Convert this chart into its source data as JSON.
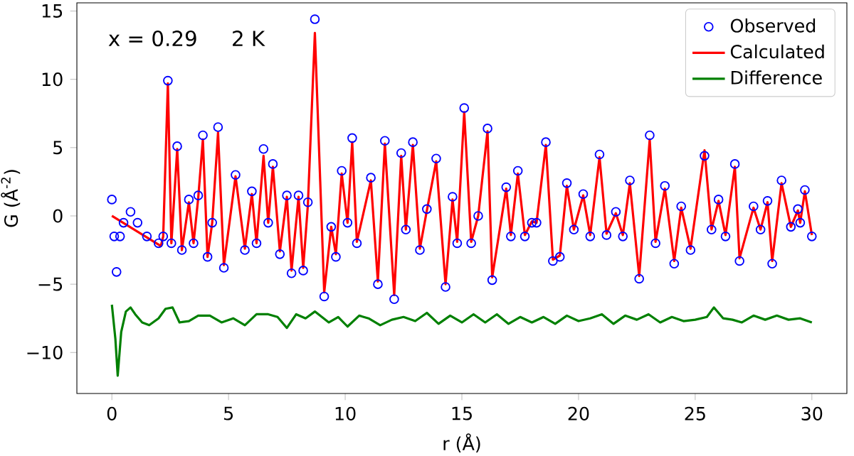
{
  "chart_data": {
    "type": "line",
    "xlabel": "r (Å)",
    "ylabel": "G (Å$^{-2}$)",
    "annotations": [
      "x = 0.29",
      "2 K"
    ],
    "xlim": [
      -1.5,
      31.5
    ],
    "ylim": [
      -13,
      15.6
    ],
    "xticks": [
      0,
      5,
      10,
      15,
      20,
      25,
      30
    ],
    "yticks": [
      {
        "value": -10,
        "label": "−10"
      },
      {
        "value": -5,
        "label": "−5"
      },
      0,
      5,
      10,
      15
    ],
    "legend": "top right",
    "grid": false,
    "series": [
      {
        "name": "Observed",
        "type": "scatter",
        "marker": "circle",
        "color": "#0000ff",
        "x": [
          0,
          0.1,
          0.2,
          0.35,
          0.5,
          0.8,
          1.1,
          1.5,
          2.0,
          2.2,
          2.4,
          2.55,
          2.8,
          3.0,
          3.3,
          3.5,
          3.7,
          3.9,
          4.1,
          4.3,
          4.55,
          4.8,
          5.3,
          5.7,
          6.0,
          6.2,
          6.5,
          6.7,
          6.9,
          7.2,
          7.5,
          7.7,
          8.0,
          8.2,
          8.4,
          8.7,
          9.1,
          9.4,
          9.6,
          9.85,
          10.1,
          10.3,
          10.5,
          11.1,
          11.4,
          11.7,
          12.1,
          12.4,
          12.6,
          12.9,
          13.2,
          13.5,
          13.9,
          14.3,
          14.6,
          14.8,
          15.1,
          15.4,
          15.7,
          16.1,
          16.3,
          16.9,
          17.1,
          17.4,
          17.7,
          18.0,
          18.2,
          18.6,
          18.9,
          19.2,
          19.5,
          19.8,
          20.2,
          20.5,
          20.9,
          21.2,
          21.6,
          21.9,
          22.2,
          22.6,
          23.05,
          23.3,
          23.7,
          24.1,
          24.4,
          24.8,
          25.4,
          25.7,
          26.0,
          26.3,
          26.7,
          26.9,
          27.5,
          27.8,
          28.1,
          28.3,
          28.7,
          29.1,
          29.4,
          29.5,
          29.7,
          30.0
        ],
        "values": [
          1.2,
          -1.5,
          -4.1,
          -1.5,
          -0.5,
          0.3,
          -0.5,
          -1.5,
          -2.0,
          -1.5,
          9.9,
          -2.0,
          5.1,
          -2.5,
          1.2,
          -2.0,
          1.5,
          5.9,
          -3.0,
          -0.5,
          6.5,
          -3.8,
          3.0,
          -2.5,
          1.8,
          -2.0,
          4.9,
          -0.5,
          3.8,
          -2.8,
          1.5,
          -4.2,
          1.5,
          -4.0,
          1.0,
          14.4,
          -5.9,
          -0.8,
          -3.0,
          3.3,
          -0.5,
          5.7,
          -2.0,
          2.8,
          -5.0,
          5.5,
          -6.1,
          4.6,
          -1.0,
          5.4,
          -2.5,
          0.5,
          4.2,
          -5.2,
          1.4,
          -2.0,
          7.9,
          -2.0,
          0.0,
          6.4,
          -4.7,
          2.1,
          -1.5,
          3.3,
          -1.5,
          -0.5,
          -0.5,
          5.4,
          -3.3,
          -3.0,
          2.4,
          -1.0,
          1.6,
          -1.5,
          4.5,
          -1.4,
          0.3,
          -1.5,
          2.6,
          -4.6,
          5.9,
          -2.0,
          2.2,
          -3.5,
          0.7,
          -2.5,
          4.4,
          -1.0,
          1.2,
          -1.5,
          3.8,
          -3.3,
          0.7,
          -1.0,
          1.1,
          -3.5,
          2.6,
          -0.8,
          0.5,
          -0.5,
          1.9,
          -1.5
        ]
      },
      {
        "name": "Calculated",
        "color": "#ff0000",
        "x": [
          0,
          2.1,
          2.2,
          2.4,
          2.55,
          2.8,
          3.0,
          3.3,
          3.5,
          3.7,
          3.9,
          4.1,
          4.3,
          4.55,
          4.8,
          5.3,
          5.7,
          6.0,
          6.2,
          6.5,
          6.7,
          6.9,
          7.2,
          7.5,
          7.7,
          8.0,
          8.2,
          8.4,
          8.7,
          9.1,
          9.4,
          9.6,
          9.85,
          10.1,
          10.3,
          10.5,
          11.1,
          11.4,
          11.7,
          12.1,
          12.4,
          12.6,
          12.9,
          13.2,
          13.5,
          13.9,
          14.3,
          14.6,
          14.8,
          15.1,
          15.4,
          15.7,
          16.1,
          16.3,
          16.9,
          17.1,
          17.4,
          17.7,
          18.0,
          18.2,
          18.6,
          18.9,
          19.2,
          19.5,
          19.8,
          20.2,
          20.5,
          20.9,
          21.2,
          21.6,
          21.9,
          22.2,
          22.6,
          23.05,
          23.3,
          23.7,
          24.1,
          24.4,
          24.8,
          25.4,
          25.7,
          26.0,
          26.3,
          26.7,
          26.9,
          27.5,
          27.8,
          28.1,
          28.3,
          28.7,
          29.1,
          29.4,
          29.5,
          29.7,
          30.0
        ],
        "values": [
          0,
          -2.2,
          -1.5,
          9.7,
          -2.0,
          4.9,
          -2.5,
          1.0,
          -2.0,
          1.3,
          5.6,
          -3.0,
          -0.5,
          6.1,
          -3.6,
          2.9,
          -2.4,
          1.6,
          -2.0,
          4.4,
          -0.5,
          3.6,
          -2.6,
          1.4,
          -4.0,
          1.4,
          -3.8,
          0.8,
          13.4,
          -5.6,
          -0.8,
          -2.8,
          3.1,
          -0.5,
          5.4,
          -1.9,
          2.6,
          -4.8,
          5.3,
          -5.8,
          4.4,
          -1.0,
          5.2,
          -2.4,
          0.4,
          4.0,
          -5.0,
          1.2,
          -1.9,
          7.6,
          -1.9,
          0.0,
          6.2,
          -4.5,
          2.0,
          -1.4,
          3.1,
          -1.4,
          -0.4,
          -0.5,
          5.2,
          -3.2,
          -2.9,
          2.2,
          -1.0,
          1.5,
          -1.4,
          4.3,
          -1.3,
          0.2,
          -1.4,
          2.4,
          -4.4,
          5.6,
          -1.9,
          2.0,
          -3.3,
          0.6,
          -2.4,
          4.8,
          -1.0,
          1.1,
          -1.4,
          3.6,
          -3.1,
          0.6,
          -1.0,
          1.0,
          -3.3,
          2.4,
          -0.8,
          0.4,
          -0.5,
          1.8,
          -1.4
        ]
      },
      {
        "name": "Difference",
        "color": "#008000",
        "x": [
          0,
          0.15,
          0.25,
          0.4,
          0.6,
          0.8,
          1.0,
          1.3,
          1.6,
          2.0,
          2.3,
          2.6,
          2.9,
          3.3,
          3.7,
          4.2,
          4.7,
          5.2,
          5.7,
          6.2,
          6.7,
          7.1,
          7.5,
          7.9,
          8.3,
          8.7,
          9.3,
          9.7,
          10.1,
          10.6,
          11.0,
          11.5,
          12.0,
          12.5,
          13.0,
          13.5,
          14.0,
          14.5,
          15.0,
          15.5,
          16.0,
          16.5,
          17.0,
          17.5,
          18.0,
          18.5,
          19.0,
          19.5,
          20.0,
          20.5,
          21.0,
          21.5,
          22.0,
          22.5,
          23.0,
          23.5,
          24.0,
          24.5,
          25.0,
          25.5,
          25.8,
          26.2,
          26.6,
          27.0,
          27.5,
          28.0,
          28.5,
          29.0,
          29.5,
          30.0
        ],
        "values": [
          -6.5,
          -9,
          -11.7,
          -8.5,
          -7,
          -6.7,
          -7.2,
          -7.8,
          -8.0,
          -7.5,
          -6.8,
          -6.7,
          -7.8,
          -7.7,
          -7.3,
          -7.3,
          -7.8,
          -7.5,
          -8.0,
          -7.2,
          -7.2,
          -7.4,
          -8.2,
          -7.2,
          -7.5,
          -7.0,
          -7.8,
          -7.4,
          -8.1,
          -7.3,
          -7.5,
          -8.0,
          -7.6,
          -7.4,
          -7.7,
          -7.1,
          -7.9,
          -7.3,
          -7.8,
          -7.2,
          -7.8,
          -7.2,
          -7.9,
          -7.4,
          -7.8,
          -7.4,
          -7.9,
          -7.3,
          -7.7,
          -7.5,
          -7.2,
          -7.9,
          -7.3,
          -7.6,
          -7.2,
          -7.8,
          -7.4,
          -7.7,
          -7.6,
          -7.4,
          -6.7,
          -7.5,
          -7.6,
          -7.8,
          -7.3,
          -7.6,
          -7.3,
          -7.6,
          -7.5,
          -7.8
        ]
      }
    ]
  }
}
